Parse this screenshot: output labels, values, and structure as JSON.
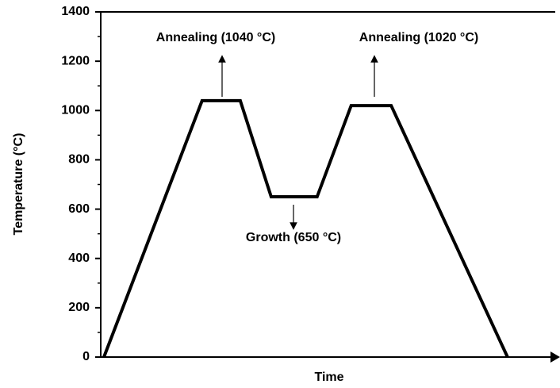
{
  "chart_data": {
    "type": "line",
    "x_label": "Time",
    "y_label": "Temperature (°C)",
    "x": [
      0.7,
      22.3,
      30.7,
      37.5,
      47.6,
      55.1,
      63.9,
      89.5
    ],
    "series": [
      {
        "color": "#000000",
        "values": [
          0,
          1040,
          1040,
          650,
          650,
          1020,
          1020,
          0
        ]
      }
    ],
    "xlim": [
      0,
      100
    ],
    "ylim": [
      0,
      1400
    ],
    "yticks": [
      0,
      200,
      400,
      600,
      800,
      1000,
      1200,
      1400
    ],
    "annotations": [
      "Annealing (1040 °C)",
      "Growth (650 °C)",
      "Annealing (1020 °C)"
    ]
  }
}
